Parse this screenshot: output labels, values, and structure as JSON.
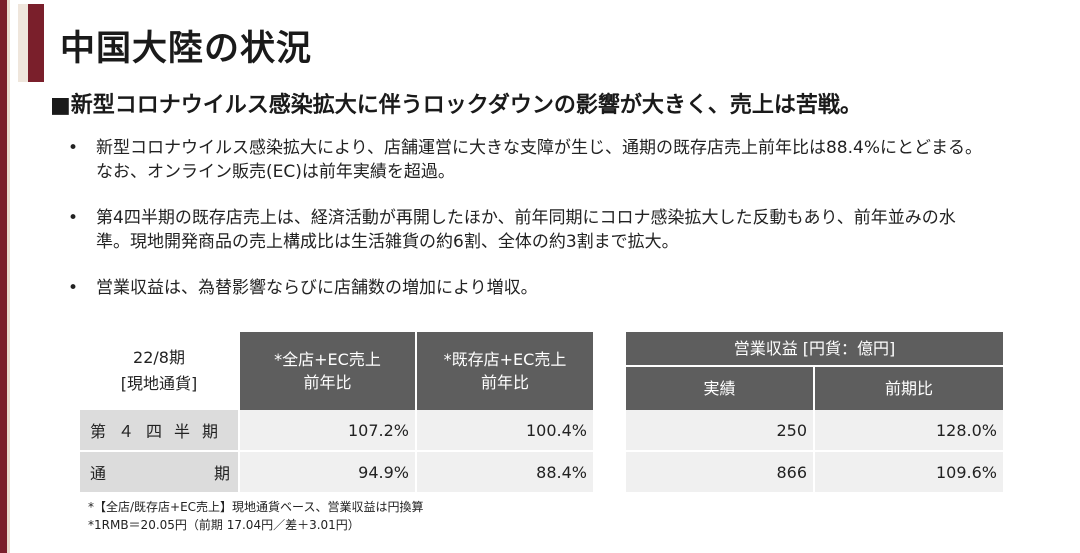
{
  "title": "中国大陸の状況",
  "headline": "■新型コロナウイルス感染拡大に伴うロックダウンの影響が大きく、売上は苦戦。",
  "bullets": [
    {
      "marker": "•",
      "lines": [
        "新型コロナウイルス感染拡大により、店舗運営に大きな支障が生じ、通期の既存店売上前年比は88.4%にとどまる。",
        "なお、オンライン販売(EC)は前年実績を超過。"
      ]
    },
    {
      "marker": "•",
      "lines": [
        "第4四半期の既存店売上は、経済活動が再開したほか、前年同期にコロナ感染拡大した反動もあり、前年並みの水",
        "準。現地開発商品の売上構成比は生活雑貨の約6割、全体の約3割まで拡大。"
      ]
    },
    {
      "marker": "•",
      "lines": [
        "営業収益は、為替影響ならびに店舗数の増加により増収。"
      ]
    }
  ],
  "sales_table": {
    "corner_line1": "22/8期",
    "corner_line2": "[現地通貨]",
    "col1_line1": "*全店+EC売上",
    "col1_line2": "前年比",
    "col2_line1": "*既存店+EC売上",
    "col2_line2": "前年比",
    "rows": [
      {
        "label": "第４四半期",
        "c1": "107.2%",
        "c2": "100.4%"
      },
      {
        "label": "通期",
        "c1": "94.9%",
        "c2": "88.4%"
      }
    ]
  },
  "profit_table": {
    "header": "営業収益 [円貨：億円]",
    "col1": "実績",
    "col2": "前期比",
    "rows": [
      {
        "c1": "250",
        "c2": "128.0%"
      },
      {
        "c1": "866",
        "c2": "109.6%"
      }
    ]
  },
  "notes": [
    "*【全店/既存店+EC売上】現地通貨ベース、営業収益は円換算",
    "*1RMB＝20.05円（前期 17.04円／差＋3.01円）"
  ],
  "colors": {
    "accent": "#7a1f2b",
    "header_bg": "#5e5e5e",
    "label_bg": "#dcdcdc",
    "cell_bg": "#f0f0f0"
  }
}
